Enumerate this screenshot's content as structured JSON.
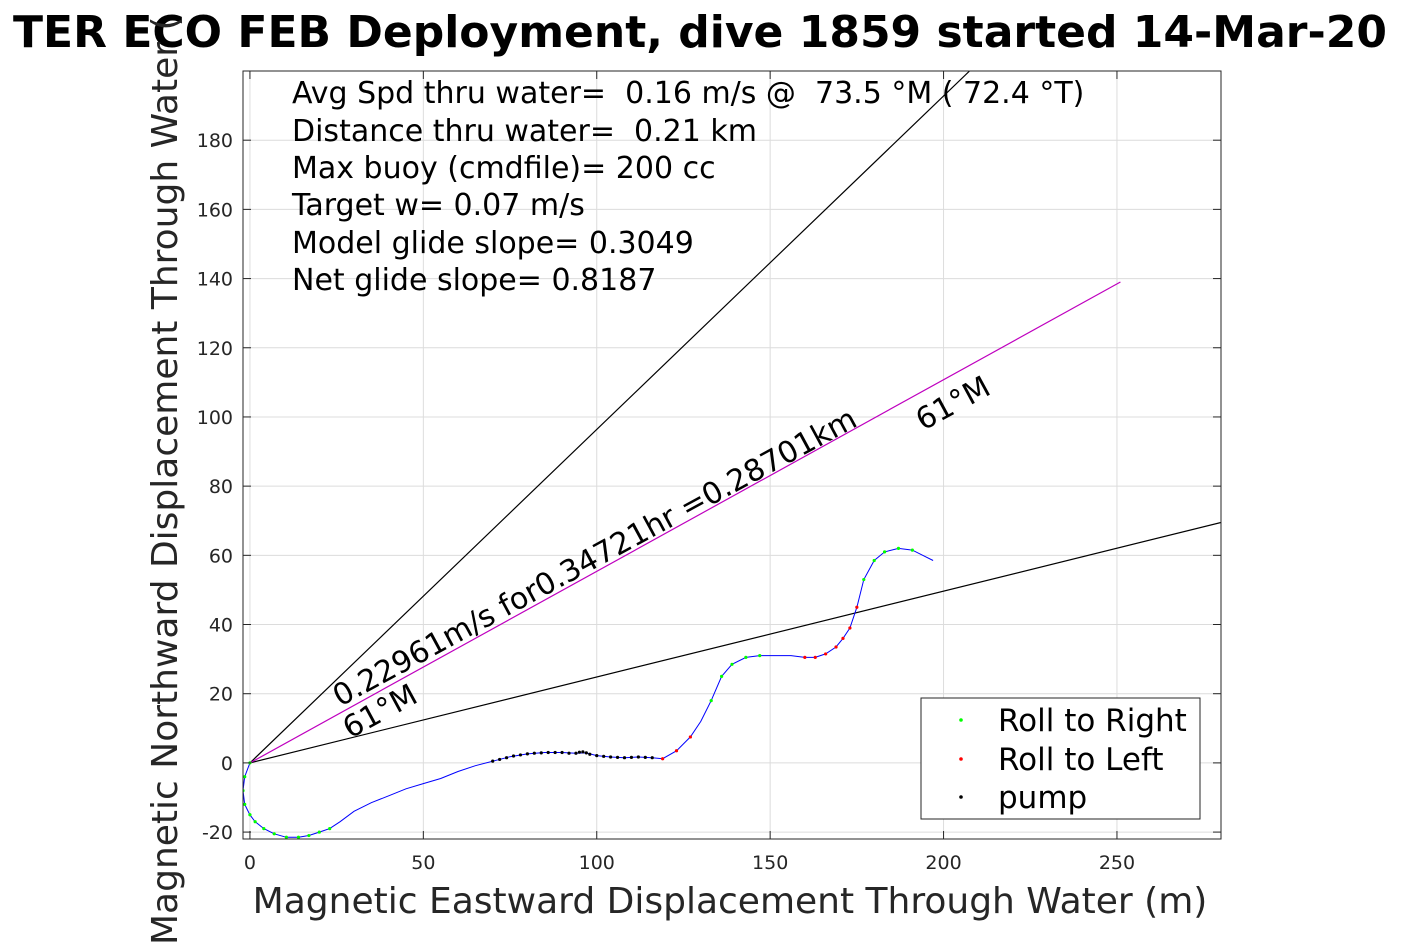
{
  "chart_data": {
    "type": "line",
    "title": "TER ECO FEB Deployment, dive 1859 started 14-Mar-20",
    "xlabel": "Magnetic Eastward Displacement Through Water (m)",
    "ylabel": "Magnetic Northward Displacement Through Water (",
    "xlim": [
      -2,
      280
    ],
    "ylim": [
      -22,
      200
    ],
    "xticks": [
      0,
      50,
      100,
      150,
      200,
      250
    ],
    "yticks": [
      -20,
      0,
      20,
      40,
      60,
      80,
      100,
      120,
      140,
      160,
      180
    ],
    "grid": true,
    "stats": [
      "Avg Spd thru water=  0.16 m/s @  73.5 °M ( 72.4 °T)",
      "Distance thru water=  0.21 km",
      "Max buoy (cmdfile)= 200 cc",
      "Target w= 0.07 m/s",
      "Model glide slope= 0.3049",
      "Net glide slope= 0.8187"
    ],
    "annotations": {
      "speed": "0.22961m/s for0.34721hr =0.28701km",
      "heading_upper": "61°M",
      "heading_lower": "61°M"
    },
    "lines": [
      {
        "name": "bound-upper",
        "color": "#000000",
        "points": [
          [
            0,
            0
          ],
          [
            207.5,
            200
          ]
        ]
      },
      {
        "name": "bound-lower",
        "color": "#000000",
        "points": [
          [
            0,
            0
          ],
          [
            280,
            69.5
          ]
        ]
      },
      {
        "name": "heading",
        "color": "#bf00bf",
        "points": [
          [
            0,
            0
          ],
          [
            251,
            139
          ]
        ]
      }
    ],
    "track": {
      "name": "track",
      "color": "#0000ff",
      "points": [
        [
          0,
          0
        ],
        [
          -1.5,
          -4
        ],
        [
          -2,
          -8
        ],
        [
          -1.5,
          -12
        ],
        [
          0,
          -15
        ],
        [
          1.5,
          -17
        ],
        [
          4,
          -19
        ],
        [
          7,
          -20.5
        ],
        [
          10.5,
          -21.5
        ],
        [
          14,
          -21.5
        ],
        [
          17,
          -21
        ],
        [
          20,
          -20
        ],
        [
          23,
          -19
        ],
        [
          26,
          -17
        ],
        [
          30,
          -14
        ],
        [
          35,
          -11.5
        ],
        [
          40,
          -9.5
        ],
        [
          45,
          -7.5
        ],
        [
          50,
          -6
        ],
        [
          55,
          -4.5
        ],
        [
          60,
          -2.5
        ],
        [
          65,
          -0.8
        ],
        [
          70,
          0.5
        ],
        [
          75,
          1.8
        ],
        [
          80,
          2.6
        ],
        [
          85,
          3
        ],
        [
          90,
          3
        ],
        [
          94,
          2.8
        ],
        [
          97,
          2.9
        ],
        [
          100,
          2.1
        ],
        [
          104,
          1.7
        ],
        [
          108,
          1.5
        ],
        [
          112,
          1.7
        ],
        [
          116,
          1.5
        ],
        [
          119,
          1.2
        ],
        [
          123,
          3.5
        ],
        [
          127,
          7.5
        ],
        [
          130,
          12
        ],
        [
          133,
          18
        ],
        [
          136,
          25
        ],
        [
          139,
          28.5
        ],
        [
          143,
          30.5
        ],
        [
          147,
          31
        ],
        [
          152,
          31
        ],
        [
          156,
          31
        ],
        [
          160,
          30.5
        ],
        [
          163,
          30.5
        ],
        [
          166,
          31.5
        ],
        [
          169,
          33.5
        ],
        [
          171,
          36
        ],
        [
          173,
          39
        ],
        [
          175,
          45
        ],
        [
          177,
          53
        ],
        [
          180,
          58.5
        ],
        [
          183,
          61
        ],
        [
          187,
          62
        ],
        [
          191,
          61.5
        ],
        [
          194,
          60
        ],
        [
          197,
          58.5
        ]
      ]
    },
    "series": [
      {
        "name": "Roll to Right",
        "color": "#00ff00",
        "points": [
          [
            0,
            0
          ],
          [
            -1.5,
            -4
          ],
          [
            -2,
            -8
          ],
          [
            -1.5,
            -12
          ],
          [
            0,
            -15
          ],
          [
            1.5,
            -17
          ],
          [
            4,
            -19
          ],
          [
            7,
            -20.5
          ],
          [
            10.5,
            -21.5
          ],
          [
            14,
            -21.5
          ],
          [
            17,
            -21
          ],
          [
            20,
            -20
          ],
          [
            23,
            -19
          ],
          [
            133,
            18
          ],
          [
            136,
            25
          ],
          [
            139,
            28.5
          ],
          [
            143,
            30.5
          ],
          [
            147,
            31
          ],
          [
            177,
            53
          ],
          [
            180,
            58.5
          ],
          [
            183,
            61
          ],
          [
            187,
            62
          ],
          [
            191,
            61.5
          ]
        ]
      },
      {
        "name": "Roll to Left",
        "color": "#ff0000",
        "points": [
          [
            119,
            1.2
          ],
          [
            123,
            3.5
          ],
          [
            127,
            7.5
          ],
          [
            160,
            30.5
          ],
          [
            163,
            30.5
          ],
          [
            166,
            31.5
          ],
          [
            169,
            33.5
          ],
          [
            171,
            36
          ],
          [
            173,
            39
          ],
          [
            175,
            45
          ]
        ]
      },
      {
        "name": "pump",
        "color": "#000000",
        "points": [
          [
            70,
            0.5
          ],
          [
            72,
            1
          ],
          [
            74,
            1.5
          ],
          [
            76,
            2
          ],
          [
            78,
            2.3
          ],
          [
            80,
            2.6
          ],
          [
            82,
            2.8
          ],
          [
            84,
            2.9
          ],
          [
            86,
            3
          ],
          [
            88,
            3
          ],
          [
            90,
            3
          ],
          [
            92,
            2.8
          ],
          [
            94,
            2.8
          ],
          [
            95,
            3.1
          ],
          [
            96,
            3.2
          ],
          [
            97,
            2.9
          ],
          [
            98,
            2.5
          ],
          [
            100,
            2.1
          ],
          [
            102,
            1.9
          ],
          [
            104,
            1.7
          ],
          [
            106,
            1.6
          ],
          [
            108,
            1.5
          ],
          [
            110,
            1.6
          ],
          [
            112,
            1.7
          ],
          [
            114,
            1.6
          ],
          [
            116,
            1.5
          ]
        ]
      }
    ],
    "legend": {
      "position": "bottom-right",
      "entries": [
        "Roll to Right",
        "Roll to Left",
        "pump"
      ]
    }
  }
}
